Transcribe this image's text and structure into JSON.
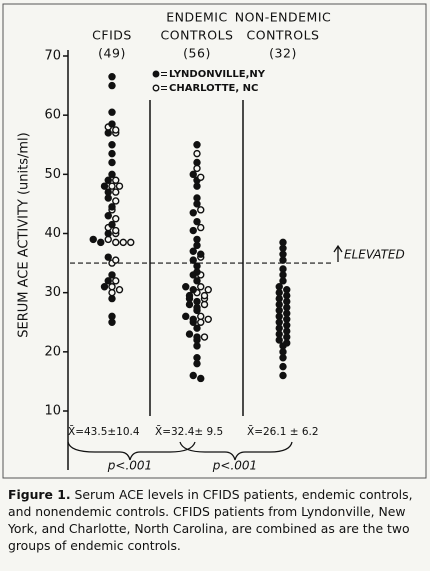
{
  "chart_data": {
    "type": "strip",
    "categories": [
      [
        "CFIDS",
        "(49)"
      ],
      [
        "ENDEMIC",
        "CONTROLS",
        "(56)"
      ],
      [
        "NON-ENDEMIC",
        "CONTROLS",
        "(32)"
      ]
    ],
    "ylabel": "SERUM ACE ACTIVITY (units/ml)",
    "ylim": [
      10,
      70
    ],
    "yticks": [
      10,
      20,
      30,
      40,
      50,
      60,
      70
    ],
    "threshold": 35,
    "threshold_label": "ELEVATED",
    "series": [
      {
        "name": "LYNDONVILLE,NY",
        "marker": "filled",
        "color": "#111111",
        "values": [
          [
            66.5,
            65,
            60.5,
            58.5,
            57,
            55,
            53.5,
            52,
            50,
            49,
            48,
            47,
            46,
            44.5,
            43,
            41.5,
            40,
            39,
            38.5,
            36,
            33,
            32,
            31,
            29,
            25,
            26
          ],
          [
            55,
            52,
            50,
            49,
            48,
            46,
            45,
            43.5,
            42,
            40.5,
            39,
            38,
            37,
            36.5,
            35.5,
            34.5,
            33.5,
            33,
            32,
            31,
            30.5,
            29.5,
            29,
            28.5,
            28,
            27.5,
            27,
            26,
            25.5,
            25,
            24,
            23,
            22.5,
            22,
            21,
            19,
            18,
            16,
            15.5
          ],
          [
            38.5,
            37.5,
            36.5,
            35.5,
            34,
            33,
            32,
            31,
            30.5,
            30,
            29.5,
            29,
            28.5,
            28,
            27.5,
            27,
            26.5,
            26,
            25.5,
            25,
            24.5,
            24,
            23.5,
            23,
            22.5,
            22,
            21.5,
            21,
            20,
            19,
            17.5,
            16
          ]
        ]
      },
      {
        "name": "CHARLOTTE, NC",
        "marker": "open",
        "color": "#111111",
        "values": [
          [
            58,
            57.5,
            57,
            49,
            48,
            48,
            47,
            45.5,
            44,
            42.5,
            41,
            40.5,
            40,
            39,
            38.5,
            38.5,
            38.5,
            35.5,
            35,
            32,
            31,
            30,
            30.5
          ],
          [
            53.5,
            51,
            49.5,
            44,
            41,
            36,
            33,
            31,
            30.5,
            30,
            29.5,
            29,
            28,
            26,
            25.5,
            25,
            22.5
          ],
          []
        ]
      }
    ],
    "means": [
      "X̄=43.5±10.4",
      "X̄=32.4± 9.5",
      "X̄=26.1 ± 6.2"
    ],
    "p_values": [
      "p<.001",
      "p<.001"
    ],
    "caption_label": "Figure 1.",
    "caption": "Serum ACE levels in CFIDS patients, endemic controls, and nonendemic controls. CFIDS patients from Lyndonville, New York, and Charlotte, North Carolina, are combined as are the two groups of endemic controls."
  }
}
